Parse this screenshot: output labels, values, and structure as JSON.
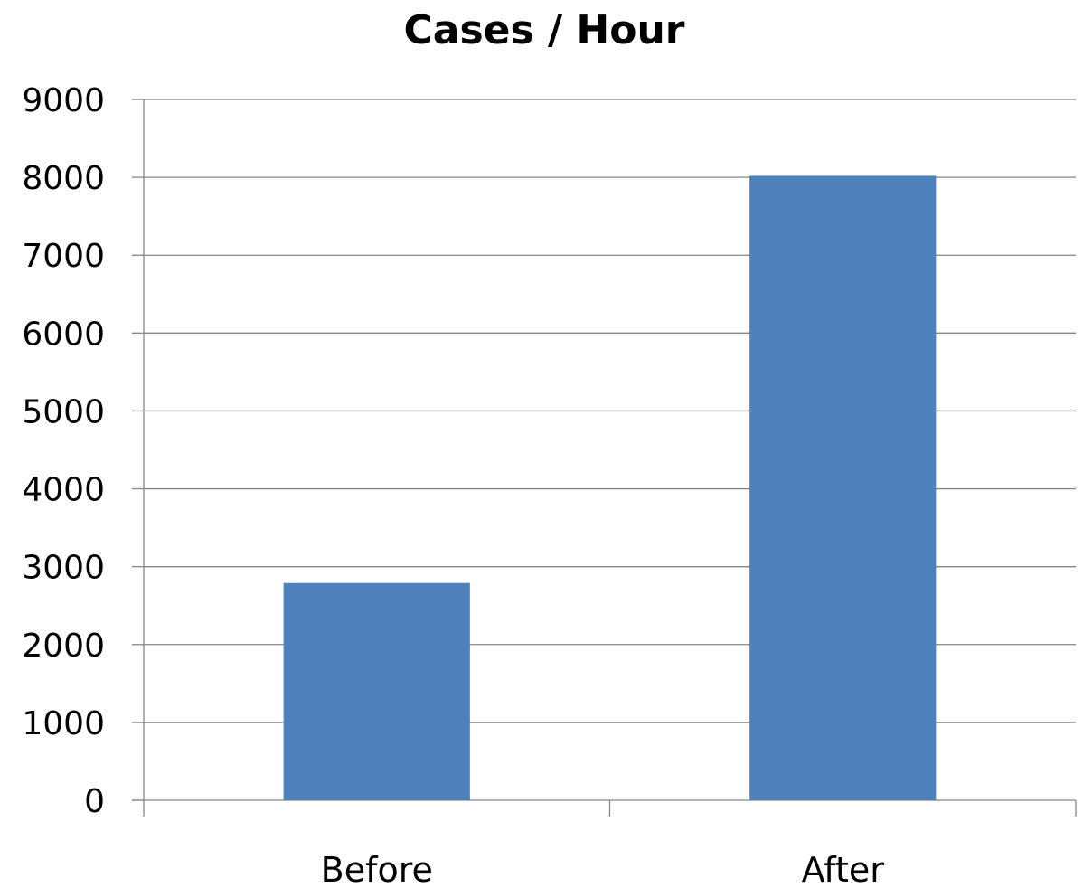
{
  "chart_data": {
    "type": "bar",
    "title": "Cases / Hour",
    "xlabel": "",
    "ylabel": "",
    "categories": [
      "Before",
      "After"
    ],
    "values": [
      2790,
      8020
    ],
    "ylim": [
      0,
      9000
    ],
    "yticks": [
      "0",
      "1000",
      "2000",
      "3000",
      "4000",
      "5000",
      "6000",
      "7000",
      "8000",
      "9000"
    ],
    "grid": true,
    "legend": "none",
    "bar_color": "#4f81bd"
  }
}
